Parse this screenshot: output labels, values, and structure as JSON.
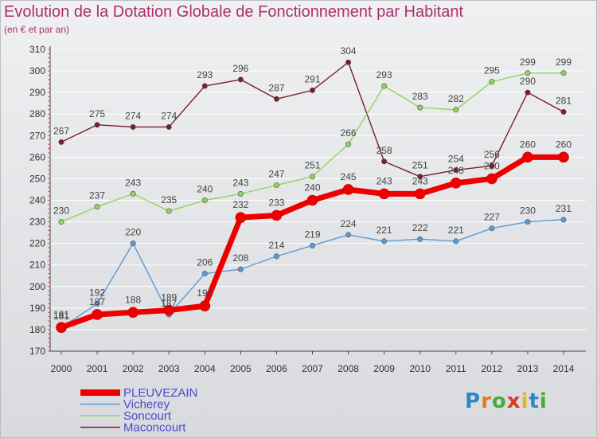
{
  "title": "Evolution de la Dotation Globale de Fonctionnement par Habitant",
  "subtitle": "(en € et par an)",
  "logo": {
    "letters": [
      "P",
      "r",
      "o",
      "x",
      "i",
      "t",
      "i"
    ],
    "colors": [
      "#2f86c9",
      "#e07a1a",
      "#4aaa3a",
      "#d83a2a",
      "#e0b81a",
      "#2f86c9",
      "#4aaa3a"
    ]
  },
  "colors": {
    "PLEUVEZAIN": "#ee0000",
    "Vicherey": "#5b9bd5",
    "Soncourt": "#8fd45f",
    "Maconcourt": "#7a1f2a",
    "legend_text": "#4a4acc",
    "grid": "#ffffff",
    "axis": "#444444"
  },
  "chart_data": {
    "type": "line",
    "title": "Evolution de la Dotation Globale de Fonctionnement par Habitant",
    "ylabel": "(en € et par an)",
    "xlabel": "",
    "x": [
      2000,
      2001,
      2002,
      2003,
      2004,
      2005,
      2006,
      2007,
      2008,
      2009,
      2010,
      2011,
      2012,
      2013,
      2014
    ],
    "ylim": [
      170,
      310
    ],
    "yticks": [
      170,
      180,
      190,
      200,
      210,
      220,
      230,
      240,
      250,
      260,
      270,
      280,
      290,
      300,
      310
    ],
    "grid": true,
    "legend": "bottom-left",
    "series": [
      {
        "name": "PLEUVEZAIN",
        "values": [
          181,
          187,
          188,
          189,
          191,
          232,
          233,
          240,
          245,
          243,
          243,
          248,
          250,
          260,
          260
        ]
      },
      {
        "name": "Vicherey",
        "values": [
          181,
          192,
          220,
          187,
          206,
          208,
          214,
          219,
          224,
          221,
          222,
          221,
          227,
          230,
          231
        ]
      },
      {
        "name": "Soncourt",
        "values": [
          230,
          237,
          243,
          235,
          240,
          243,
          247,
          251,
          266,
          293,
          283,
          282,
          295,
          299,
          299
        ]
      },
      {
        "name": "Maconcourt",
        "values": [
          267,
          275,
          274,
          274,
          293,
          296,
          287,
          291,
          304,
          258,
          251,
          254,
          256,
          290,
          281
        ]
      }
    ],
    "data_labels": {
      "PLEUVEZAIN": [
        "181",
        "187",
        "188",
        "189",
        "191",
        "232",
        "233",
        "240",
        "245",
        "243",
        "243",
        "248",
        "250",
        "260",
        "260"
      ],
      "Vicherey": [
        "181",
        "192",
        "220",
        "187",
        "206",
        "208",
        "214",
        "219",
        "224",
        "221",
        "222",
        "221",
        "227",
        "230",
        "231"
      ],
      "Soncourt": [
        "230",
        "237",
        "243",
        "235",
        "240",
        "243",
        "247",
        "251",
        "266",
        "293",
        "283",
        "282",
        "295",
        "299",
        "299"
      ],
      "Maconcourt": [
        "267",
        "275",
        "274",
        "274",
        "293",
        "296",
        "287",
        "291",
        "304",
        "258",
        "251",
        "254",
        "256",
        "290",
        "281"
      ]
    }
  }
}
